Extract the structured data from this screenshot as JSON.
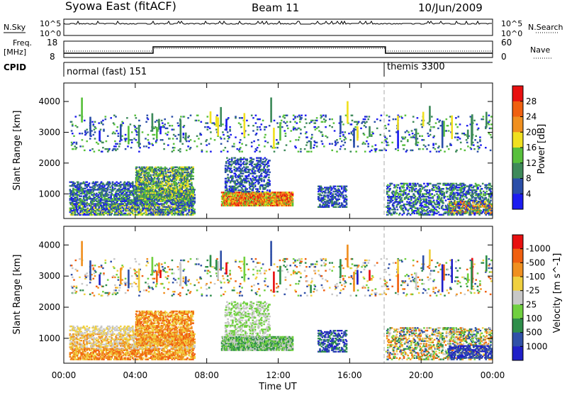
{
  "header": {
    "title": "Syowa East (fitACF)",
    "beam": "Beam 11",
    "date": "10/Jun/2009"
  },
  "top_panels": {
    "nsky_label": "N.Sky",
    "nsearch_label": "N.Search",
    "nsky_ticks": [
      "10^5",
      "10^0"
    ],
    "nsearch_ticks": [
      "10^5",
      "10^0"
    ],
    "freq_label": "Freq.",
    "freq_unit": "[MHz]",
    "freq_ticks": [
      "18",
      "8"
    ],
    "nave_label": "Nave",
    "nave_ticks": [
      "60",
      "0"
    ],
    "cpid_label": "CPID",
    "cpid_segments": [
      {
        "label": "normal (fast) 151",
        "start_hour": 0,
        "end_hour": 18
      },
      {
        "label": "themis 3300",
        "start_hour": 18,
        "end_hour": 24
      }
    ]
  },
  "chart_data": [
    {
      "type": "heatmap",
      "name": "power-panel",
      "ylabel": "Slant Range [km]",
      "xlim": [
        0,
        24
      ],
      "ylim": [
        200,
        4600
      ],
      "y_ticks": [
        1000,
        2000,
        3000,
        4000
      ],
      "colorbar_label": "Power [dB]",
      "colorbar_ticks": [
        "4",
        "8",
        "12",
        "16",
        "20",
        "24",
        "28"
      ],
      "colorbar_colors": [
        "#1c1cf0",
        "#2a4ea8",
        "#3e8a5a",
        "#58c03c",
        "#f0e020",
        "#f09020",
        "#f06010",
        "#e81010"
      ]
    },
    {
      "type": "heatmap",
      "name": "velocity-panel",
      "ylabel": "Slant Range [km]",
      "xlabel": "Time UT",
      "xlim": [
        0,
        24
      ],
      "ylim": [
        200,
        4600
      ],
      "y_ticks": [
        1000,
        2000,
        3000,
        4000
      ],
      "x_ticks": [
        "00:00",
        "04:00",
        "08:00",
        "12:00",
        "16:00",
        "20:00",
        "00:00"
      ],
      "x_tick_hours": [
        0,
        4,
        8,
        12,
        16,
        20,
        24
      ],
      "colorbar_label": "Velocity [m s^-1]",
      "colorbar_ticks": [
        "1000",
        "500",
        "100",
        "25",
        "-25",
        "-100",
        "-500",
        "-1000"
      ],
      "colorbar_colors": [
        "#2020c8",
        "#3050a8",
        "#2e8e4a",
        "#70d040",
        "#c8c8c8",
        "#f0d040",
        "#f09020",
        "#f06010",
        "#e81010"
      ]
    }
  ]
}
